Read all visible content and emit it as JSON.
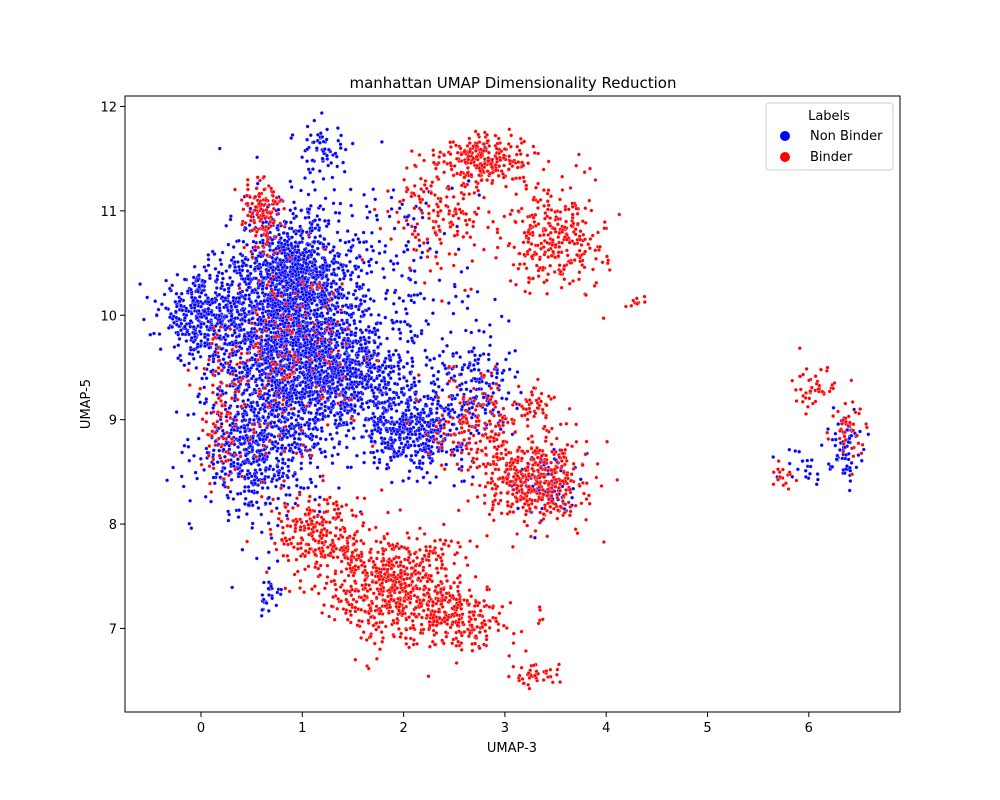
{
  "chart_data": {
    "type": "scatter",
    "title": "manhattan UMAP Dimensionality Reduction",
    "xlabel": "UMAP-3",
    "ylabel": "UMAP-5",
    "xlim": [
      -0.75,
      6.9
    ],
    "ylim": [
      6.2,
      12.1
    ],
    "xticks": [
      0,
      1,
      2,
      3,
      4,
      5,
      6
    ],
    "yticks": [
      7,
      8,
      9,
      10,
      11,
      12
    ],
    "grid": false,
    "legend": {
      "title": "Labels",
      "placement": "top-right"
    },
    "series": [
      {
        "name": "Non Binder",
        "color": "#0000ff",
        "clusters": [
          {
            "cx": 0.85,
            "cy": 9.7,
            "sx": 0.35,
            "sy": 0.55,
            "n": 1800
          },
          {
            "cx": 0.9,
            "cy": 10.3,
            "sx": 0.3,
            "sy": 0.35,
            "n": 900
          },
          {
            "cx": 0.0,
            "cy": 10.0,
            "sx": 0.2,
            "sy": 0.18,
            "n": 350
          },
          {
            "cx": 0.5,
            "cy": 8.7,
            "sx": 0.25,
            "sy": 0.3,
            "n": 450
          },
          {
            "cx": 1.5,
            "cy": 9.4,
            "sx": 0.3,
            "sy": 0.25,
            "n": 650
          },
          {
            "cx": 2.1,
            "cy": 8.9,
            "sx": 0.25,
            "sy": 0.18,
            "n": 450
          },
          {
            "cx": 2.7,
            "cy": 9.3,
            "sx": 0.2,
            "sy": 0.25,
            "n": 180
          },
          {
            "cx": 1.8,
            "cy": 10.3,
            "sx": 0.5,
            "sy": 0.6,
            "n": 250
          },
          {
            "cx": 1.2,
            "cy": 11.6,
            "sx": 0.12,
            "sy": 0.15,
            "n": 60
          },
          {
            "cx": 3.4,
            "cy": 8.4,
            "sx": 0.15,
            "sy": 0.15,
            "n": 90
          },
          {
            "cx": 0.65,
            "cy": 7.3,
            "sx": 0.05,
            "sy": 0.1,
            "n": 25
          },
          {
            "cx": 6.35,
            "cy": 8.75,
            "sx": 0.08,
            "sy": 0.15,
            "n": 70
          },
          {
            "cx": 5.9,
            "cy": 8.55,
            "sx": 0.12,
            "sy": 0.08,
            "n": 20
          }
        ]
      },
      {
        "name": "Binder",
        "color": "#ff0000",
        "clusters": [
          {
            "cx": 1.9,
            "cy": 7.4,
            "sx": 0.35,
            "sy": 0.25,
            "n": 650
          },
          {
            "cx": 1.2,
            "cy": 7.9,
            "sx": 0.25,
            "sy": 0.2,
            "n": 250
          },
          {
            "cx": 2.55,
            "cy": 7.1,
            "sx": 0.25,
            "sy": 0.15,
            "n": 220
          },
          {
            "cx": 3.3,
            "cy": 8.4,
            "sx": 0.25,
            "sy": 0.2,
            "n": 450
          },
          {
            "cx": 2.75,
            "cy": 8.95,
            "sx": 0.22,
            "sy": 0.25,
            "n": 180
          },
          {
            "cx": 3.5,
            "cy": 10.75,
            "sx": 0.25,
            "sy": 0.25,
            "n": 300
          },
          {
            "cx": 2.85,
            "cy": 11.5,
            "sx": 0.22,
            "sy": 0.12,
            "n": 220
          },
          {
            "cx": 2.4,
            "cy": 11.0,
            "sx": 0.25,
            "sy": 0.3,
            "n": 180
          },
          {
            "cx": 0.6,
            "cy": 11.0,
            "sx": 0.1,
            "sy": 0.18,
            "n": 130
          },
          {
            "cx": 0.8,
            "cy": 9.6,
            "sx": 0.35,
            "sy": 0.5,
            "n": 180
          },
          {
            "cx": 0.2,
            "cy": 9.0,
            "sx": 0.12,
            "sy": 0.35,
            "n": 90
          },
          {
            "cx": 3.3,
            "cy": 6.55,
            "sx": 0.12,
            "sy": 0.06,
            "n": 40
          },
          {
            "cx": 4.3,
            "cy": 10.1,
            "sx": 0.05,
            "sy": 0.05,
            "n": 10
          },
          {
            "cx": 6.05,
            "cy": 9.3,
            "sx": 0.12,
            "sy": 0.1,
            "n": 45
          },
          {
            "cx": 6.4,
            "cy": 8.85,
            "sx": 0.08,
            "sy": 0.15,
            "n": 40
          },
          {
            "cx": 5.7,
            "cy": 8.45,
            "sx": 0.12,
            "sy": 0.08,
            "n": 18
          },
          {
            "cx": 3.3,
            "cy": 9.1,
            "sx": 0.15,
            "sy": 0.1,
            "n": 50
          }
        ]
      }
    ]
  }
}
